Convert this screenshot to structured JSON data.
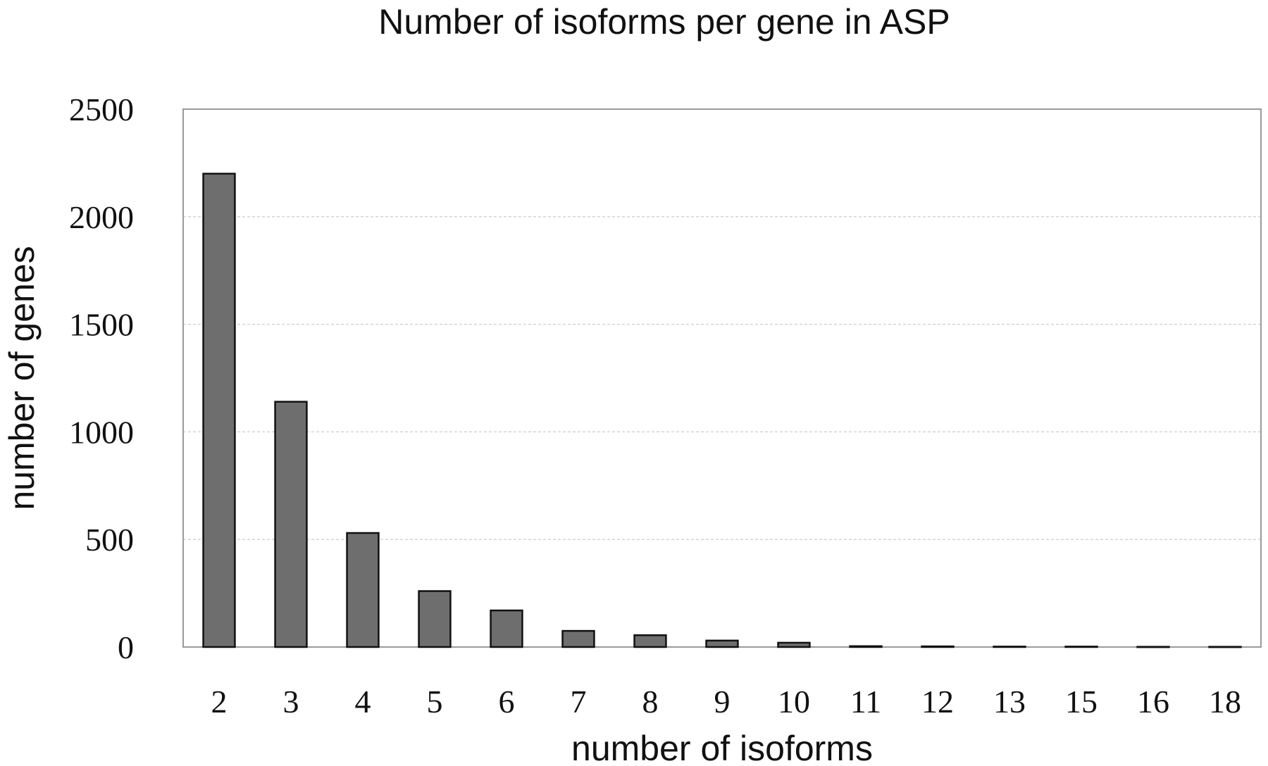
{
  "chart_data": {
    "type": "bar",
    "title": "Number of isoforms per gene in ASP",
    "xlabel": "number of isoforms",
    "ylabel": "number of genes",
    "categories": [
      "2",
      "3",
      "4",
      "5",
      "6",
      "7",
      "8",
      "9",
      "10",
      "11",
      "12",
      "13",
      "15",
      "16",
      "18"
    ],
    "values": [
      2200,
      1140,
      530,
      260,
      170,
      75,
      55,
      30,
      20,
      4,
      3,
      2,
      2,
      1,
      1
    ],
    "ylim": [
      0,
      2500
    ],
    "yticks": [
      "0",
      "500",
      "1000",
      "1500",
      "2000",
      "2500"
    ],
    "ytick_values": [
      0,
      500,
      1000,
      1500,
      2000,
      2500
    ],
    "grid": true,
    "legend": "none",
    "colors": {
      "bar_fill": "#6e6e6e",
      "bar_stroke": "#111111",
      "grid": "#d4d4d4",
      "frame": "#9a9a9a"
    }
  }
}
